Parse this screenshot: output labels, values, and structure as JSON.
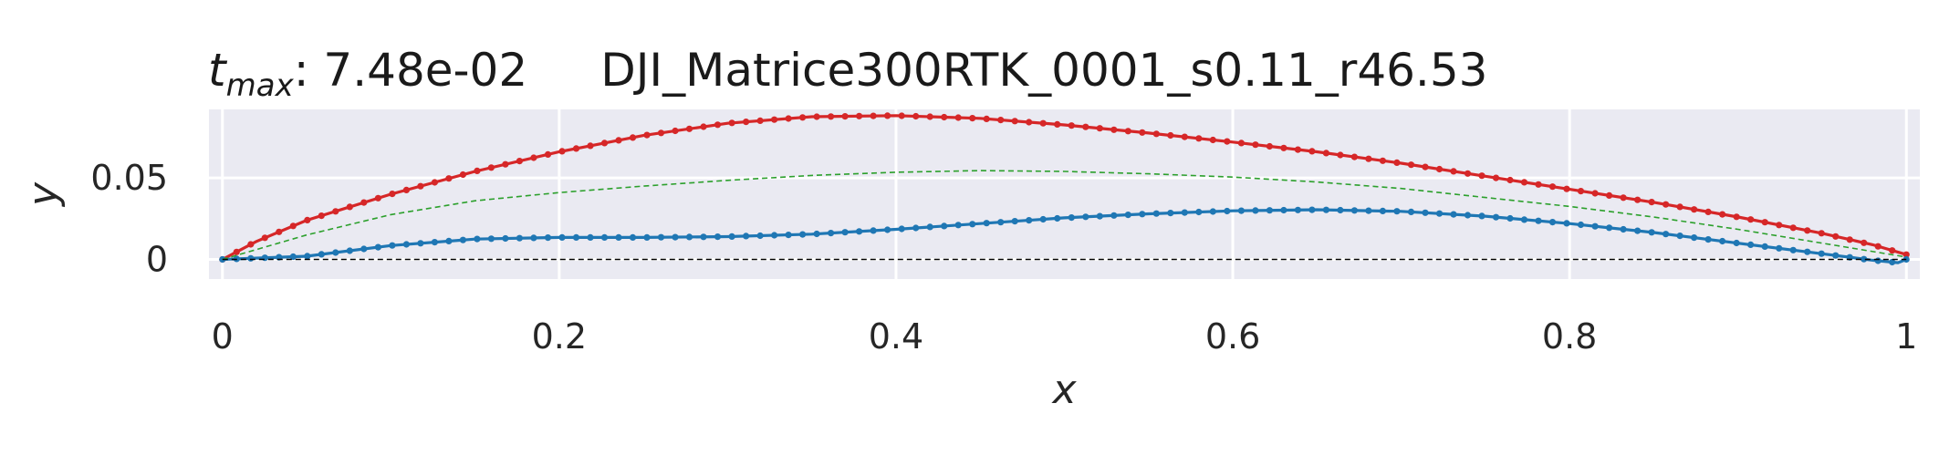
{
  "title": {
    "tmax_symbol": "t",
    "tmax_subscript": "max",
    "tmax_value": ": 7.48e-02",
    "name": "DJI_Matrice300RTK_0001_s0.11_r46.53"
  },
  "chart_data": {
    "type": "line",
    "xlabel": "x",
    "ylabel": "y",
    "xlim": [
      -0.008,
      1.008
    ],
    "ylim": [
      -0.012,
      0.092
    ],
    "xticks": [
      0,
      0.2,
      0.4,
      0.6,
      0.8,
      1
    ],
    "xtick_labels": [
      "0",
      "0.2",
      "0.4",
      "0.6",
      "0.8",
      "1"
    ],
    "yticks": [
      0,
      0.05
    ],
    "ytick_labels": [
      "0",
      "0.05"
    ],
    "grid": true,
    "background": "#EAEAF2",
    "series": [
      {
        "role": "upper surface",
        "color": "#D62728",
        "markers": true,
        "points": [
          [
            0,
            0
          ],
          [
            0.02,
            0.011
          ],
          [
            0.05,
            0.024
          ],
          [
            0.1,
            0.04
          ],
          [
            0.15,
            0.054
          ],
          [
            0.2,
            0.066
          ],
          [
            0.25,
            0.076
          ],
          [
            0.3,
            0.0835
          ],
          [
            0.35,
            0.0875
          ],
          [
            0.4,
            0.0882
          ],
          [
            0.45,
            0.0865
          ],
          [
            0.5,
            0.0825
          ],
          [
            0.55,
            0.0775
          ],
          [
            0.6,
            0.072
          ],
          [
            0.65,
            0.066
          ],
          [
            0.7,
            0.059
          ],
          [
            0.75,
            0.051
          ],
          [
            0.8,
            0.043
          ],
          [
            0.85,
            0.035
          ],
          [
            0.9,
            0.026
          ],
          [
            0.95,
            0.016
          ],
          [
            0.98,
            0.009
          ],
          [
            1,
            0.003
          ]
        ]
      },
      {
        "role": "lower surface",
        "color": "#1F77B4",
        "markers": true,
        "points": [
          [
            0,
            0
          ],
          [
            0.05,
            0.002
          ],
          [
            0.1,
            0.0085
          ],
          [
            0.15,
            0.0125
          ],
          [
            0.2,
            0.0135
          ],
          [
            0.25,
            0.0135
          ],
          [
            0.3,
            0.014
          ],
          [
            0.35,
            0.0155
          ],
          [
            0.4,
            0.0185
          ],
          [
            0.45,
            0.022
          ],
          [
            0.5,
            0.0255
          ],
          [
            0.55,
            0.028
          ],
          [
            0.6,
            0.0298
          ],
          [
            0.65,
            0.0305
          ],
          [
            0.7,
            0.0295
          ],
          [
            0.75,
            0.0265
          ],
          [
            0.8,
            0.022
          ],
          [
            0.85,
            0.0165
          ],
          [
            0.9,
            0.01
          ],
          [
            0.95,
            0.0035
          ],
          [
            0.98,
            -0.0005
          ],
          [
            0.995,
            -0.002
          ],
          [
            1,
            0
          ]
        ]
      },
      {
        "role": "camber line",
        "color": "#2CA02C",
        "dashed": true,
        "points": [
          [
            0,
            0
          ],
          [
            0.05,
            0.015
          ],
          [
            0.1,
            0.0275
          ],
          [
            0.15,
            0.036
          ],
          [
            0.2,
            0.041
          ],
          [
            0.25,
            0.045
          ],
          [
            0.3,
            0.0485
          ],
          [
            0.35,
            0.0515
          ],
          [
            0.4,
            0.0535
          ],
          [
            0.45,
            0.0545
          ],
          [
            0.5,
            0.054
          ],
          [
            0.55,
            0.0525
          ],
          [
            0.6,
            0.0505
          ],
          [
            0.65,
            0.0475
          ],
          [
            0.7,
            0.0435
          ],
          [
            0.75,
            0.038
          ],
          [
            0.8,
            0.0325
          ],
          [
            0.85,
            0.026
          ],
          [
            0.9,
            0.0185
          ],
          [
            0.95,
            0.01
          ],
          [
            1,
            0.0015
          ]
        ]
      },
      {
        "role": "chord line",
        "color": "#000000",
        "dashed": true,
        "points": [
          [
            0,
            0
          ],
          [
            1,
            0
          ]
        ]
      }
    ]
  }
}
